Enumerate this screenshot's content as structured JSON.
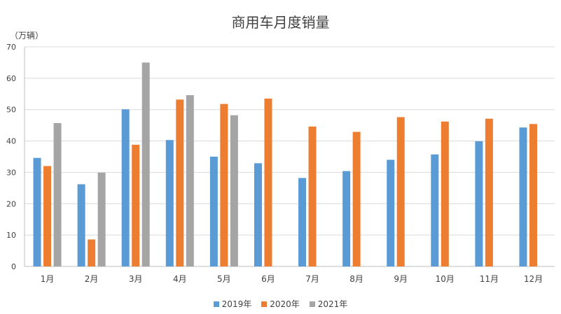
{
  "chart_data": {
    "type": "bar",
    "title": "商用车月度销量",
    "unit_label": "（万辆）",
    "categories": [
      "1月",
      "2月",
      "3月",
      "4月",
      "5月",
      "6月",
      "7月",
      "8月",
      "9月",
      "10月",
      "11月",
      "12月"
    ],
    "ylim": [
      0,
      70
    ],
    "yticks": [
      0,
      10,
      20,
      30,
      40,
      50,
      60,
      70
    ],
    "grid": true,
    "legend_position": "bottom",
    "series": [
      {
        "name": "2019年",
        "color": "#5B9BD5",
        "values": [
          34.6,
          26.2,
          50.1,
          40.3,
          35.0,
          32.9,
          28.2,
          30.4,
          34.0,
          35.7,
          39.9,
          44.3
        ]
      },
      {
        "name": "2020年",
        "color": "#ED7D31",
        "values": [
          32.0,
          8.6,
          38.8,
          53.2,
          51.8,
          53.5,
          44.6,
          42.9,
          47.6,
          46.2,
          47.1,
          45.4
        ]
      },
      {
        "name": "2021年",
        "color": "#A5A5A5",
        "values": [
          45.7,
          29.9,
          65.0,
          54.6,
          48.2,
          null,
          null,
          null,
          null,
          null,
          null,
          null
        ]
      }
    ]
  }
}
